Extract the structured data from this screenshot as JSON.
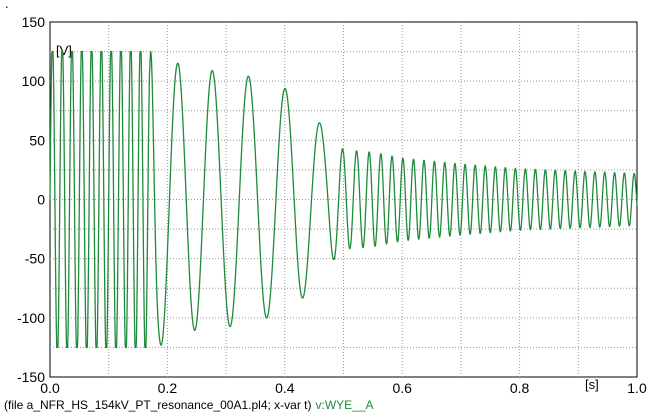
{
  "chart_data": {
    "type": "line",
    "xlabel": "[s]",
    "ylabel": "[V]",
    "xlim": [
      0.0,
      1.0
    ],
    "ylim": [
      -150,
      150
    ],
    "x_ticks": [
      "0.0",
      "0.2",
      "0.4",
      "0.6",
      "0.8",
      "1.0"
    ],
    "x_tick_values": [
      0.0,
      0.2,
      0.4,
      0.6,
      0.8,
      1.0
    ],
    "y_ticks": [
      "150",
      "100",
      "50",
      "0",
      "-50",
      "-100",
      "-150"
    ],
    "y_tick_values": [
      150,
      100,
      50,
      0,
      -50,
      -100,
      -150
    ],
    "grid": true,
    "series": [
      {
        "name": "v:WYE__A",
        "color": "#1f8a3a",
        "sample_step_s": 0.002,
        "envelope": {
          "t": [
            0.0,
            0.165,
            0.185,
            0.2,
            0.25,
            0.3,
            0.36,
            0.42,
            0.47,
            0.5,
            0.55,
            0.6,
            0.7,
            0.8,
            0.9,
            1.0
          ],
          "amp": [
            125,
            125,
            125,
            118,
            110,
            108,
            102,
            90,
            58,
            42,
            40,
            35,
            30,
            26,
            24,
            22
          ]
        },
        "frequency": {
          "t": [
            0.0,
            0.165,
            0.185,
            0.25,
            0.32,
            0.4,
            0.47,
            0.5,
            0.55,
            0.6,
            0.7,
            1.0
          ],
          "hz": [
            60,
            60,
            18,
            17,
            16,
            16,
            18,
            40,
            50,
            55,
            58,
            60
          ]
        }
      }
    ]
  },
  "footer": {
    "file_info": "(file a_NFR_HS_154kV_PT_resonance_00A1.pl4; x-var t)",
    "variable": "v:WYE__A"
  },
  "top_mark": "."
}
